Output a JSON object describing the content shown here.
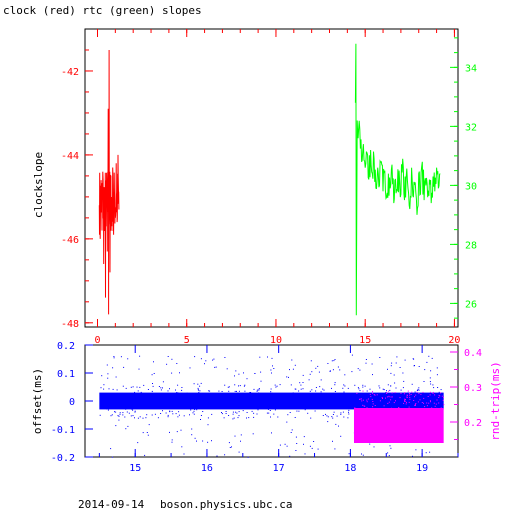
{
  "colors": {
    "clock": "#ff0000",
    "rtc": "#00ff00",
    "offset": "#0000ff",
    "roundtrip": "#ff00ff",
    "frame": "#000000"
  },
  "chart_data": [
    {
      "type": "line",
      "title": "clock (red) rtc (green) slopes",
      "ylabel": "clockslope",
      "xlim": [
        -0.7,
        20.2
      ],
      "ylim": [
        -48.1,
        -41.0
      ],
      "xticks": [
        0,
        5,
        10,
        15,
        20
      ],
      "yticks": [
        -48,
        -46,
        -44,
        -42
      ],
      "y2lim": [
        25.2,
        35.3
      ],
      "y2ticks": [
        26,
        28,
        30,
        32,
        34
      ],
      "series": [
        {
          "axis": "left",
          "color": "red",
          "approx_points": [
            [
              0.1,
              -45.2
            ],
            [
              0.15,
              -46.0
            ],
            [
              0.2,
              -44.6
            ],
            [
              0.25,
              -45.8
            ],
            [
              0.3,
              -44.4
            ],
            [
              0.35,
              -46.6
            ],
            [
              0.4,
              -45.0
            ],
            [
              0.45,
              -47.4
            ],
            [
              0.5,
              -44.9
            ],
            [
              0.55,
              -46.3
            ],
            [
              0.6,
              -42.9
            ],
            [
              0.62,
              -47.8
            ],
            [
              0.65,
              -41.5
            ],
            [
              0.7,
              -46.8
            ],
            [
              0.75,
              -44.5
            ],
            [
              0.8,
              -45.7
            ],
            [
              0.85,
              -44.3
            ],
            [
              0.9,
              -45.9
            ],
            [
              0.95,
              -44.8
            ],
            [
              1.0,
              -45.5
            ],
            [
              1.05,
              -44.2
            ],
            [
              1.1,
              -45.6
            ],
            [
              1.15,
              -44.0
            ],
            [
              1.2,
              -45.3
            ]
          ]
        },
        {
          "axis": "right",
          "color": "green",
          "approx_points": [
            [
              14.45,
              32.8
            ],
            [
              14.48,
              34.8
            ],
            [
              14.5,
              25.6
            ],
            [
              14.55,
              32.2
            ],
            [
              14.6,
              31.6
            ],
            [
              14.7,
              31.9
            ],
            [
              14.8,
              30.8
            ],
            [
              14.9,
              31.4
            ],
            [
              15.0,
              30.6
            ],
            [
              15.1,
              31.1
            ],
            [
              15.2,
              30.2
            ],
            [
              15.3,
              31.2
            ],
            [
              15.4,
              30.4
            ],
            [
              15.5,
              30.9
            ],
            [
              15.6,
              29.9
            ],
            [
              15.7,
              30.6
            ],
            [
              15.8,
              30.0
            ],
            [
              15.9,
              30.8
            ],
            [
              16.0,
              29.8
            ],
            [
              16.1,
              30.5
            ],
            [
              16.2,
              29.6
            ],
            [
              16.3,
              30.4
            ],
            [
              16.4,
              29.9
            ],
            [
              16.5,
              30.7
            ],
            [
              16.6,
              29.4
            ],
            [
              16.7,
              30.2
            ],
            [
              16.8,
              29.8
            ],
            [
              16.9,
              30.5
            ],
            [
              17.0,
              29.7
            ],
            [
              17.1,
              30.9
            ],
            [
              17.2,
              29.5
            ],
            [
              17.3,
              30.3
            ],
            [
              17.4,
              29.9
            ],
            [
              17.5,
              29.2
            ],
            [
              17.6,
              30.6
            ],
            [
              17.7,
              29.6
            ],
            [
              17.8,
              30.1
            ],
            [
              17.9,
              29.0
            ],
            [
              18.0,
              30.4
            ],
            [
              18.1,
              29.7
            ],
            [
              18.2,
              30.8
            ],
            [
              18.3,
              29.5
            ],
            [
              18.4,
              30.0
            ],
            [
              18.5,
              29.6
            ],
            [
              18.6,
              30.2
            ],
            [
              18.7,
              29.4
            ],
            [
              18.8,
              30.3
            ],
            [
              18.9,
              29.8
            ],
            [
              19.0,
              30.6
            ],
            [
              19.1,
              29.9
            ],
            [
              19.2,
              30.4
            ]
          ]
        }
      ]
    },
    {
      "type": "scatter",
      "ylabel": "offset(ms)",
      "y2label": "rnd-trip(ms)",
      "xlim": [
        14.3,
        19.5
      ],
      "ylim": [
        -0.2,
        0.2
      ],
      "xticks": [
        15,
        16,
        17,
        18,
        19
      ],
      "yticks": [
        -0.2,
        -0.1,
        0,
        0.1,
        0.2
      ],
      "y2lim": [
        0.1,
        0.42
      ],
      "y2ticks": [
        0.2,
        0.3,
        0.4
      ],
      "series": [
        {
          "axis": "left",
          "color": "blue",
          "x_range": [
            14.5,
            19.3
          ],
          "y_center": 0.0,
          "y_spread": 0.03,
          "sparse_range": [
            -0.2,
            0.2
          ]
        },
        {
          "axis": "right",
          "color": "magenta",
          "x_range": [
            18.05,
            19.3
          ],
          "y_range": [
            0.14,
            0.24
          ]
        }
      ]
    }
  ],
  "footer": {
    "date": "2014-09-14",
    "host": "boson.physics.ubc.ca"
  }
}
